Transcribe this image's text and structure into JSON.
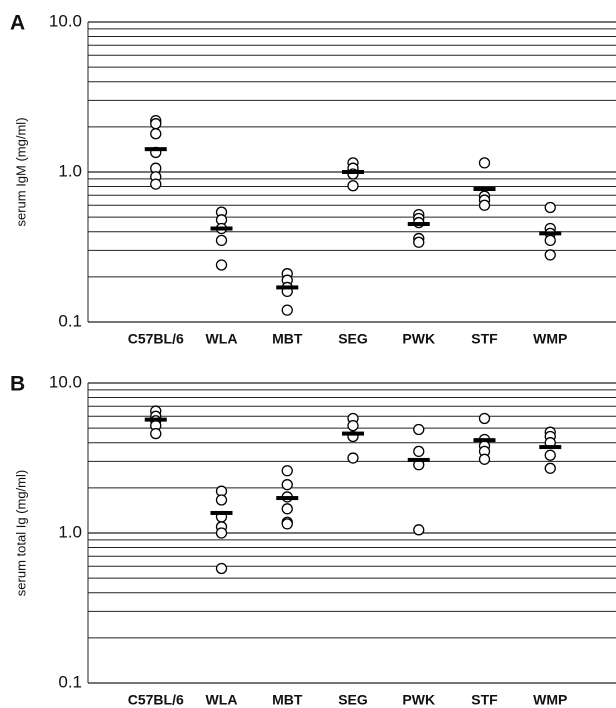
{
  "chart_data": [
    {
      "type": "dot",
      "panel_label": "A",
      "ylabel": "serum IgM (mg/ml)",
      "log_scale": true,
      "grid": true,
      "color": "#000000",
      "categories": [
        "C57BL/6",
        "WLA",
        "MBT",
        "SEG",
        "PWK",
        "STF",
        "WMP"
      ],
      "values": [
        [
          2.2,
          2.1,
          1.8,
          1.35,
          1.06,
          0.93,
          0.83
        ],
        [
          0.54,
          0.48,
          0.42,
          0.35,
          0.24
        ],
        [
          0.21,
          0.19,
          0.17,
          0.16,
          0.12
        ],
        [
          1.15,
          1.06,
          0.97,
          0.81
        ],
        [
          0.52,
          0.49,
          0.46,
          0.36,
          0.34
        ],
        [
          1.15,
          0.69,
          0.65,
          0.6
        ],
        [
          0.58,
          0.42,
          0.39,
          0.35,
          0.28
        ]
      ],
      "mean_values": [
        1.42,
        0.42,
        0.17,
        1.0,
        0.45,
        0.77,
        0.39
      ],
      "ylim": [
        0.1,
        10
      ],
      "yticks": [
        0.1,
        {
          "value": 1,
          "label": "1.0"
        },
        {
          "value": 10,
          "label": "10.0"
        }
      ],
      "minor_yticks": [
        0.2,
        0.3,
        0.4,
        0.5,
        0.6,
        0.7,
        0.8,
        0.9,
        2,
        3,
        4,
        5,
        6,
        7,
        8,
        9
      ]
    },
    {
      "type": "dot",
      "panel_label": "B",
      "ylabel": "serum total Ig (mg/ml)",
      "log_scale": true,
      "grid": true,
      "color": "#000000",
      "categories": [
        "C57BL/6",
        "WLA",
        "MBT",
        "SEG",
        "PWK",
        "STF",
        "WMP"
      ],
      "values": [
        [
          6.5,
          6.0,
          5.6,
          5.2,
          4.6
        ],
        [
          1.9,
          1.66,
          1.28,
          1.1,
          1.0,
          0.58
        ],
        [
          2.6,
          2.1,
          1.74,
          1.45,
          1.18,
          1.15
        ],
        [
          5.8,
          5.2,
          4.4,
          3.16
        ],
        [
          4.9,
          3.5,
          2.85,
          1.05
        ],
        [
          5.8,
          4.2,
          3.8,
          3.5,
          3.1
        ],
        [
          4.7,
          4.4,
          4.0,
          3.3,
          2.7
        ]
      ],
      "mean_values": [
        5.7,
        1.36,
        1.71,
        4.6,
        3.07,
        4.16,
        3.74
      ],
      "ylim": [
        0.1,
        10
      ],
      "yticks": [
        0.1,
        {
          "value": 1,
          "label": "1.0"
        },
        {
          "value": 10,
          "label": "10.0"
        }
      ],
      "minor_yticks": [
        0.2,
        0.3,
        0.4,
        0.5,
        0.6,
        0.7,
        0.8,
        0.9,
        2,
        3,
        4,
        5,
        6,
        7,
        8,
        9
      ]
    }
  ]
}
